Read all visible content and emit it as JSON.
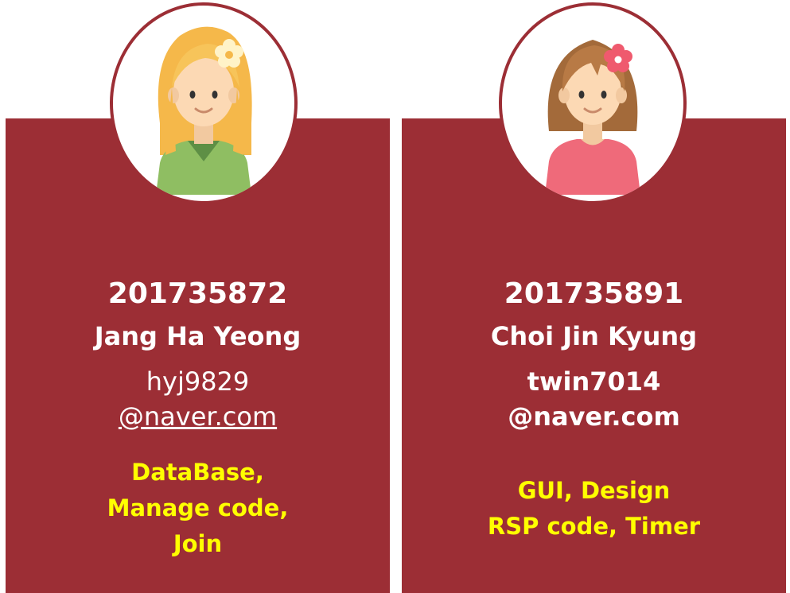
{
  "colors": {
    "panel": "#9c2e35",
    "accent_text": "#ffff00",
    "text": "#ffffff"
  },
  "members": [
    {
      "avatar": "girl-blonde-flower-avatar",
      "student_id": "201735872",
      "name": "Jang Ha Yeong",
      "email_user": "hyj9829",
      "email_domain": "@naver.com",
      "roles": [
        "DataBase,",
        "Manage code,",
        "Join"
      ]
    },
    {
      "avatar": "girl-brunette-flower-avatar",
      "student_id": "201735891",
      "name": "Choi Jin Kyung",
      "email_user": "twin7014",
      "email_domain": "@naver.com",
      "roles": [
        "GUI, Design",
        "RSP code, Timer"
      ]
    }
  ]
}
